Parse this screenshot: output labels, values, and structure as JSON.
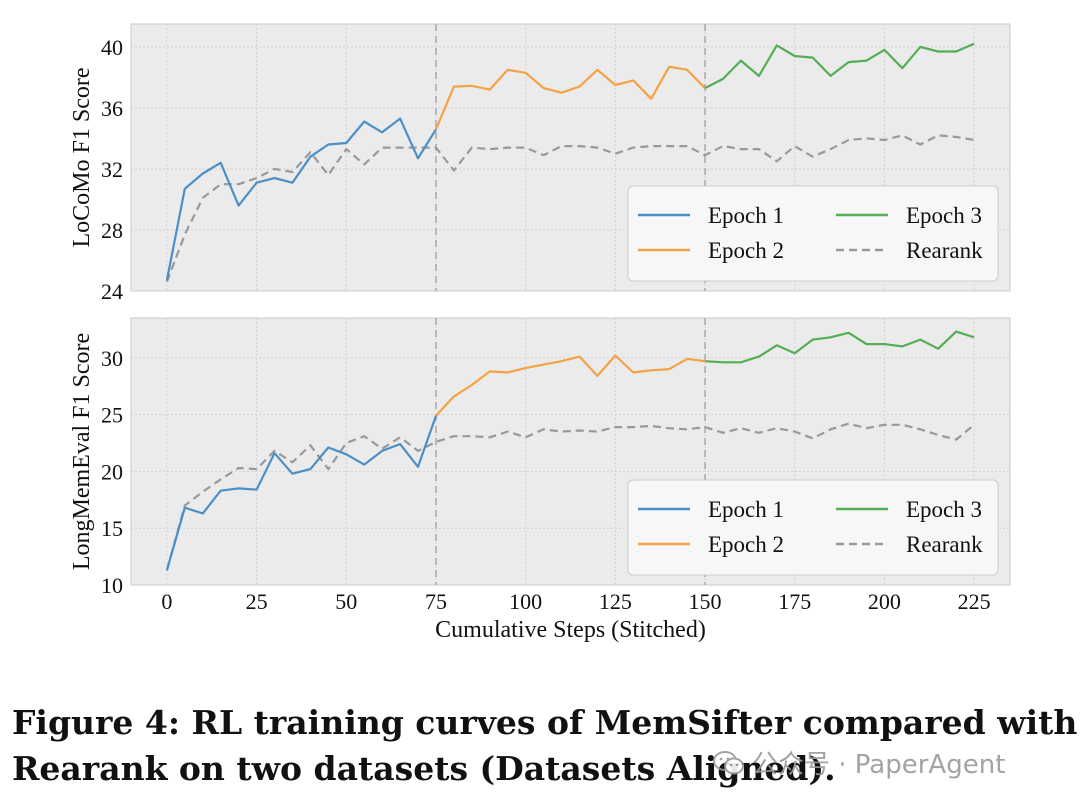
{
  "chart_data": [
    {
      "type": "line",
      "ylabel": "LoCoMo F1 Score",
      "xlabel": "Cumulative Steps (Stitched)",
      "ylim": [
        24,
        41.5
      ],
      "xlim": [
        -10,
        235
      ],
      "yticks": [
        24,
        28,
        32,
        36,
        40
      ],
      "xticks": [
        0,
        25,
        50,
        75,
        100,
        125,
        150,
        175,
        200,
        225
      ],
      "epoch_boundaries": [
        75,
        150
      ],
      "grid": true,
      "legend_position": "lower-right",
      "series": [
        {
          "name": "Epoch 1",
          "style": "solid",
          "color": "#4c8fc6",
          "x": [
            0,
            5,
            10,
            15,
            20,
            25,
            30,
            35,
            40,
            45,
            50,
            55,
            60,
            65,
            70,
            75
          ],
          "y": [
            24.7,
            30.7,
            31.7,
            32.4,
            29.6,
            31.1,
            31.4,
            31.1,
            32.8,
            33.6,
            33.7,
            35.1,
            34.4,
            35.3,
            32.7,
            34.6
          ]
        },
        {
          "name": "Epoch 2",
          "style": "solid",
          "color": "#f5a146",
          "x": [
            75,
            80,
            85,
            90,
            95,
            100,
            105,
            110,
            115,
            120,
            125,
            130,
            135,
            140,
            145,
            150
          ],
          "y": [
            34.6,
            37.4,
            37.45,
            37.2,
            38.5,
            38.3,
            37.3,
            37.0,
            37.4,
            38.5,
            37.5,
            37.8,
            36.6,
            38.7,
            38.5,
            37.3
          ]
        },
        {
          "name": "Epoch 3",
          "style": "solid",
          "color": "#55ad55",
          "x": [
            150,
            155,
            160,
            165,
            170,
            175,
            180,
            185,
            190,
            195,
            200,
            205,
            210,
            215,
            220,
            225
          ],
          "y": [
            37.3,
            37.9,
            39.1,
            38.1,
            40.1,
            39.4,
            39.3,
            38.1,
            39.0,
            39.1,
            39.8,
            38.6,
            40.0,
            39.7,
            39.7,
            40.2
          ]
        },
        {
          "name": "Rearank",
          "style": "dashed",
          "color": "#999999",
          "x": [
            0,
            5,
            10,
            15,
            20,
            25,
            30,
            35,
            40,
            45,
            50,
            55,
            60,
            65,
            70,
            75,
            80,
            85,
            90,
            95,
            100,
            105,
            110,
            115,
            120,
            125,
            130,
            135,
            140,
            145,
            150,
            155,
            160,
            165,
            170,
            175,
            180,
            185,
            190,
            195,
            200,
            205,
            210,
            215,
            220,
            225
          ],
          "y": [
            24.6,
            27.7,
            30.1,
            31.0,
            31.0,
            31.4,
            32.0,
            31.8,
            33.1,
            31.6,
            33.3,
            32.3,
            33.4,
            33.4,
            33.4,
            33.4,
            31.9,
            33.4,
            33.3,
            33.4,
            33.4,
            32.9,
            33.5,
            33.5,
            33.4,
            33.0,
            33.4,
            33.5,
            33.5,
            33.5,
            32.9,
            33.5,
            33.3,
            33.3,
            32.5,
            33.5,
            32.8,
            33.3,
            33.9,
            34.0,
            33.9,
            34.2,
            33.6,
            34.2,
            34.1,
            33.9
          ]
        }
      ],
      "legend": [
        "Epoch 1",
        "Epoch 3",
        "Epoch 2",
        "Rearank"
      ]
    },
    {
      "type": "line",
      "ylabel": "LongMemEval F1 Score",
      "xlabel": "Cumulative Steps (Stitched)",
      "ylim": [
        10,
        33.5
      ],
      "xlim": [
        -10,
        235
      ],
      "yticks": [
        10,
        15,
        20,
        25,
        30
      ],
      "xticks": [
        0,
        25,
        50,
        75,
        100,
        125,
        150,
        175,
        200,
        225
      ],
      "epoch_boundaries": [
        75,
        150
      ],
      "grid": true,
      "legend_position": "lower-right",
      "series": [
        {
          "name": "Epoch 1",
          "style": "solid",
          "color": "#4c8fc6",
          "x": [
            0,
            5,
            10,
            15,
            20,
            25,
            30,
            35,
            40,
            45,
            50,
            55,
            60,
            65,
            70,
            75
          ],
          "y": [
            11.3,
            16.8,
            16.3,
            18.3,
            18.5,
            18.4,
            21.6,
            19.8,
            20.2,
            22.1,
            21.5,
            20.6,
            21.8,
            22.4,
            20.4,
            24.9
          ]
        },
        {
          "name": "Epoch 2",
          "style": "solid",
          "color": "#f5a146",
          "x": [
            75,
            80,
            85,
            90,
            95,
            100,
            105,
            110,
            115,
            120,
            125,
            130,
            135,
            140,
            145,
            150
          ],
          "y": [
            24.9,
            26.6,
            27.6,
            28.8,
            28.7,
            29.1,
            29.4,
            29.7,
            30.1,
            28.4,
            30.2,
            28.7,
            28.9,
            29.0,
            29.9,
            29.7
          ]
        },
        {
          "name": "Epoch 3",
          "style": "solid",
          "color": "#55ad55",
          "x": [
            150,
            155,
            160,
            165,
            170,
            175,
            180,
            185,
            190,
            195,
            200,
            205,
            210,
            215,
            220,
            225
          ],
          "y": [
            29.7,
            29.6,
            29.6,
            30.1,
            31.1,
            30.4,
            31.6,
            31.8,
            32.2,
            31.2,
            31.2,
            31.0,
            31.6,
            30.8,
            32.3,
            31.8
          ]
        },
        {
          "name": "Rearank",
          "style": "dashed",
          "color": "#999999",
          "x": [
            0,
            5,
            10,
            15,
            20,
            25,
            30,
            35,
            40,
            45,
            50,
            55,
            60,
            65,
            70,
            75,
            80,
            85,
            90,
            95,
            100,
            105,
            110,
            115,
            120,
            125,
            130,
            135,
            140,
            145,
            150,
            155,
            160,
            165,
            170,
            175,
            180,
            185,
            190,
            195,
            200,
            205,
            210,
            215,
            220,
            225
          ],
          "y": [
            11.3,
            17.0,
            18.2,
            19.3,
            20.3,
            20.2,
            21.8,
            20.8,
            22.3,
            20.2,
            22.5,
            23.1,
            22.0,
            23.0,
            21.8,
            22.6,
            23.1,
            23.1,
            23.0,
            23.5,
            23.0,
            23.7,
            23.5,
            23.6,
            23.5,
            23.9,
            23.9,
            24.0,
            23.8,
            23.7,
            23.9,
            23.4,
            23.8,
            23.4,
            23.8,
            23.5,
            22.9,
            23.7,
            24.2,
            23.8,
            24.1,
            24.1,
            23.7,
            23.2,
            22.8,
            24.1
          ]
        }
      ],
      "legend": [
        "Epoch 1",
        "Epoch 3",
        "Epoch 2",
        "Rearank"
      ]
    }
  ],
  "caption": {
    "line1": "Figure 4: RL training curves of MemSifter compared with",
    "line2": "Rearank on two datasets (Datasets Aligned)."
  },
  "watermark": {
    "text": "公众号 · PaperAgent"
  }
}
